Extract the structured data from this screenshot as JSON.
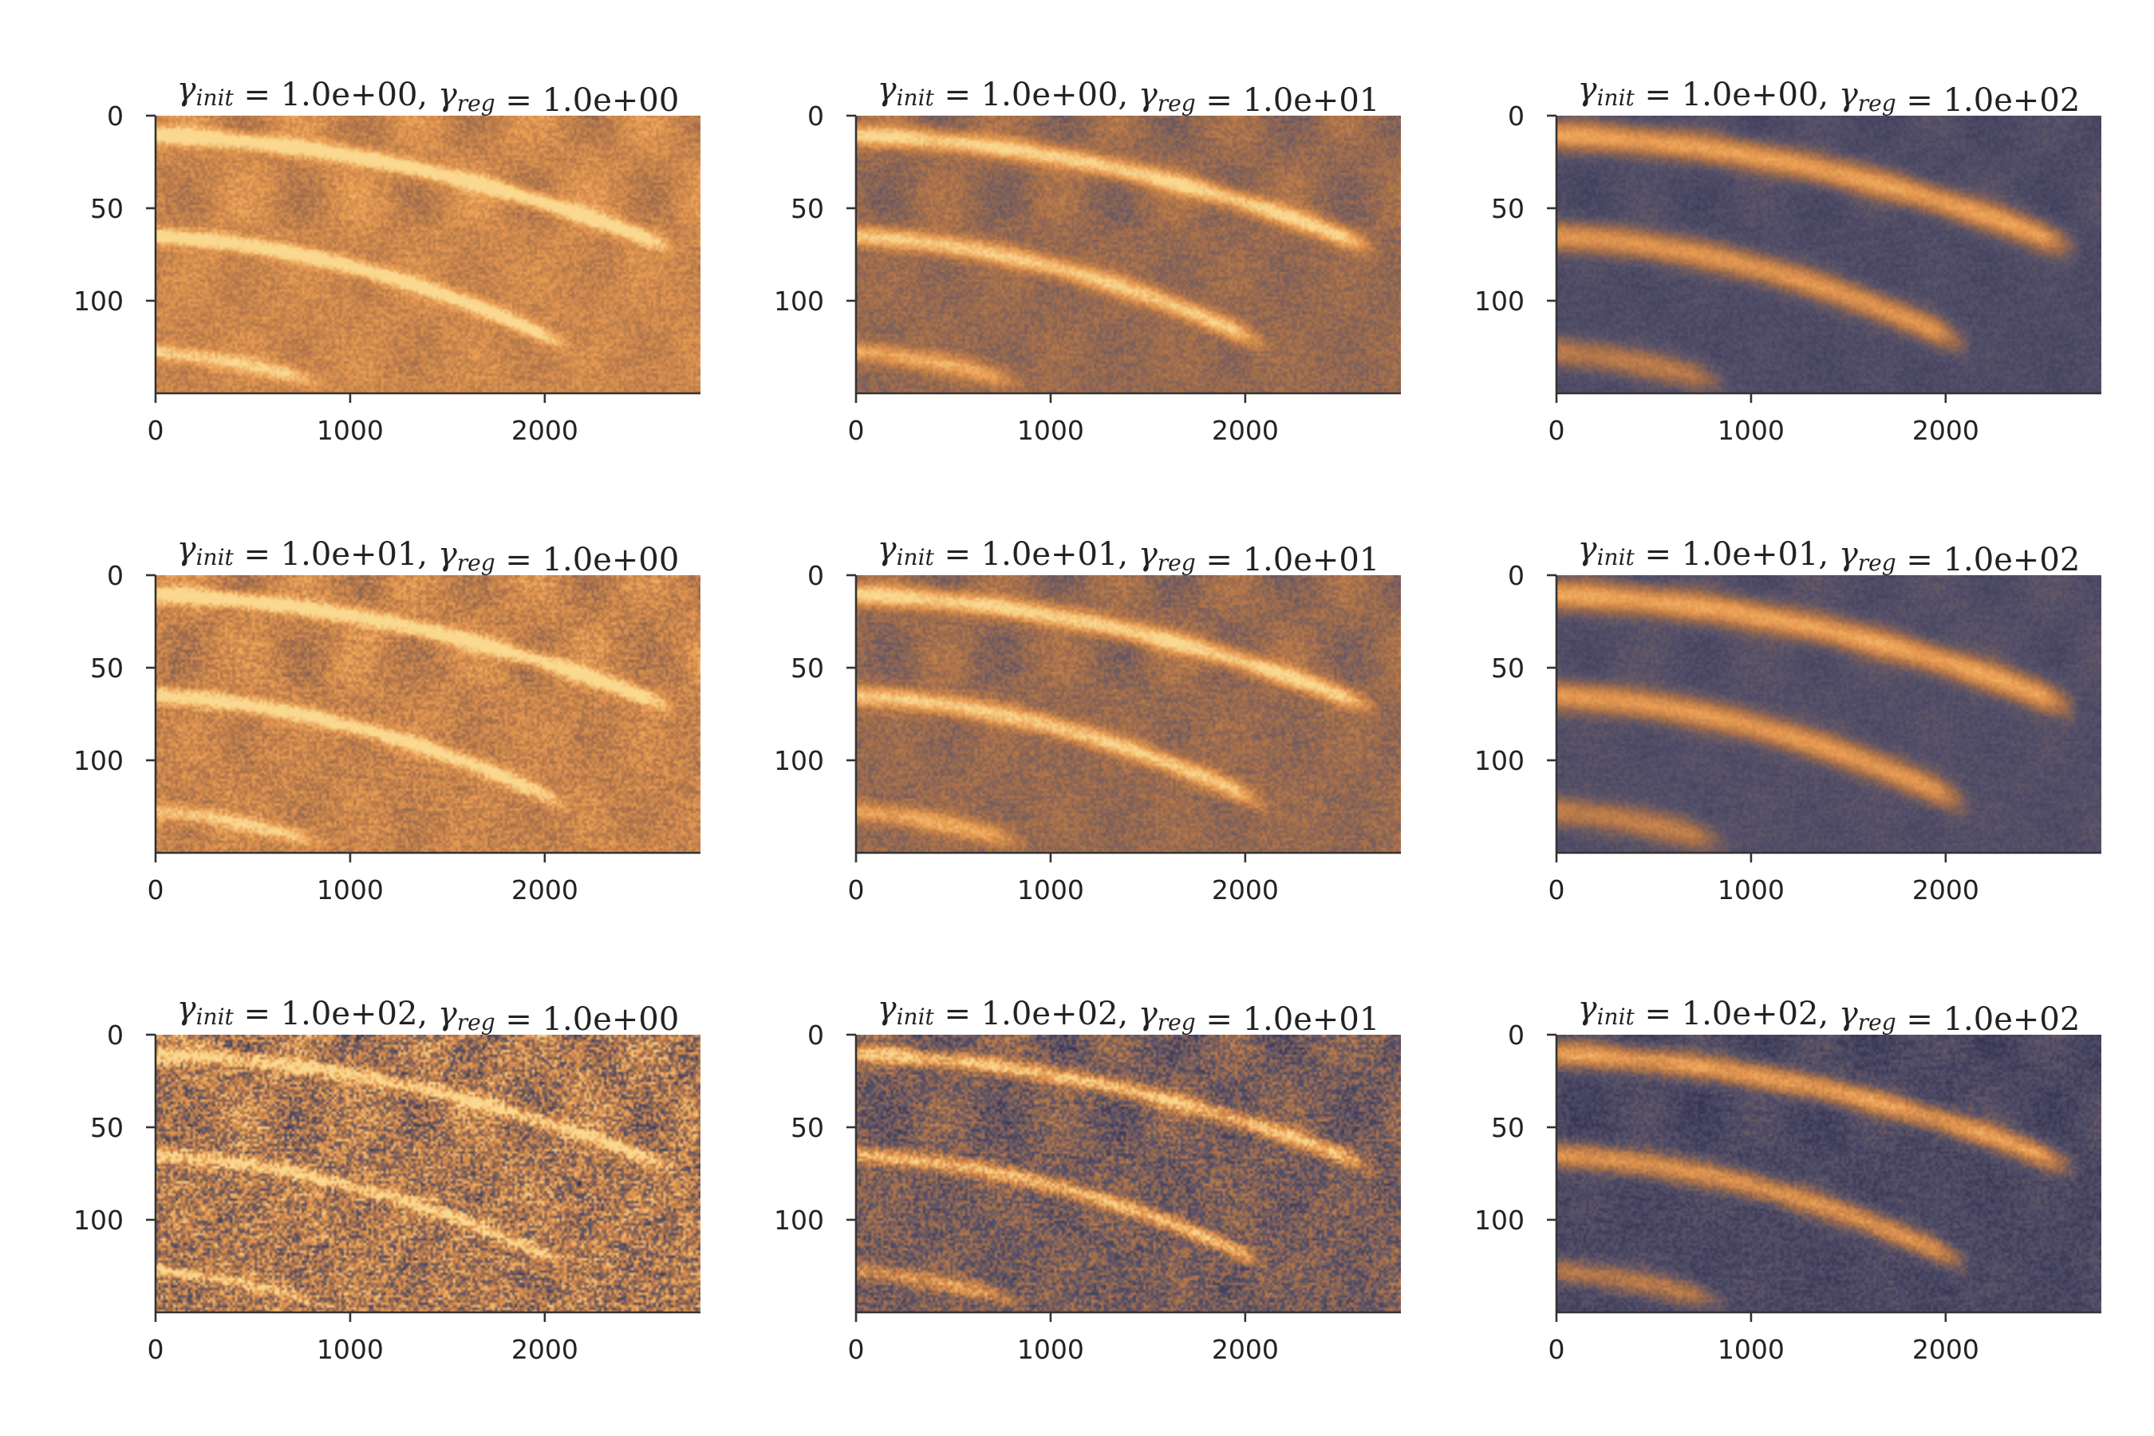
{
  "chart_data": {
    "type": "heatmap",
    "layout": {
      "rows": 3,
      "cols": 3
    },
    "colormap": [
      "#2a2848",
      "#53506a",
      "#a8704a",
      "#e89a50",
      "#fad890"
    ],
    "xticks": [
      0,
      1000,
      2000
    ],
    "yticks": [
      0,
      50,
      100
    ],
    "xlim": [
      0,
      2800
    ],
    "ylim": [
      150,
      0
    ],
    "panels": [
      {
        "gamma_init": "1.0e+00",
        "gamma_reg": "1.0e+00",
        "title_init": "1.0e+00",
        "title_reg": "1.0e+00",
        "noise": 0.1,
        "blur": 0.25,
        "bg": 0.64
      },
      {
        "gamma_init": "1.0e+00",
        "gamma_reg": "1.0e+01",
        "title_init": "1.0e+00",
        "title_reg": "1.0e+01",
        "noise": 0.08,
        "blur": 0.5,
        "bg": 0.45
      },
      {
        "gamma_init": "1.0e+00",
        "gamma_reg": "1.0e+02",
        "title_init": "1.0e+00",
        "title_reg": "1.0e+02",
        "noise": 0.05,
        "blur": 1.0,
        "bg": 0.22
      },
      {
        "gamma_init": "1.0e+01",
        "gamma_reg": "1.0e+00",
        "title_init": "1.0e+01",
        "title_reg": "1.0e+00",
        "noise": 0.13,
        "blur": 0.25,
        "bg": 0.62
      },
      {
        "gamma_init": "1.0e+01",
        "gamma_reg": "1.0e+01",
        "title_init": "1.0e+01",
        "title_reg": "1.0e+01",
        "noise": 0.09,
        "blur": 0.5,
        "bg": 0.45
      },
      {
        "gamma_init": "1.0e+01",
        "gamma_reg": "1.0e+02",
        "title_init": "1.0e+01",
        "title_reg": "1.0e+02",
        "noise": 0.05,
        "blur": 1.0,
        "bg": 0.24
      },
      {
        "gamma_init": "1.0e+02",
        "gamma_reg": "1.0e+00",
        "title_init": "1.0e+02",
        "title_reg": "1.0e+00",
        "noise": 0.32,
        "blur": 0.1,
        "bg": 0.55
      },
      {
        "gamma_init": "1.0e+02",
        "gamma_reg": "1.0e+01",
        "title_init": "1.0e+02",
        "title_reg": "1.0e+01",
        "noise": 0.18,
        "blur": 0.3,
        "bg": 0.36
      },
      {
        "gamma_init": "1.0e+02",
        "gamma_reg": "1.0e+02",
        "title_init": "1.0e+02",
        "title_reg": "1.0e+02",
        "noise": 0.08,
        "blur": 0.8,
        "bg": 0.2
      }
    ]
  }
}
